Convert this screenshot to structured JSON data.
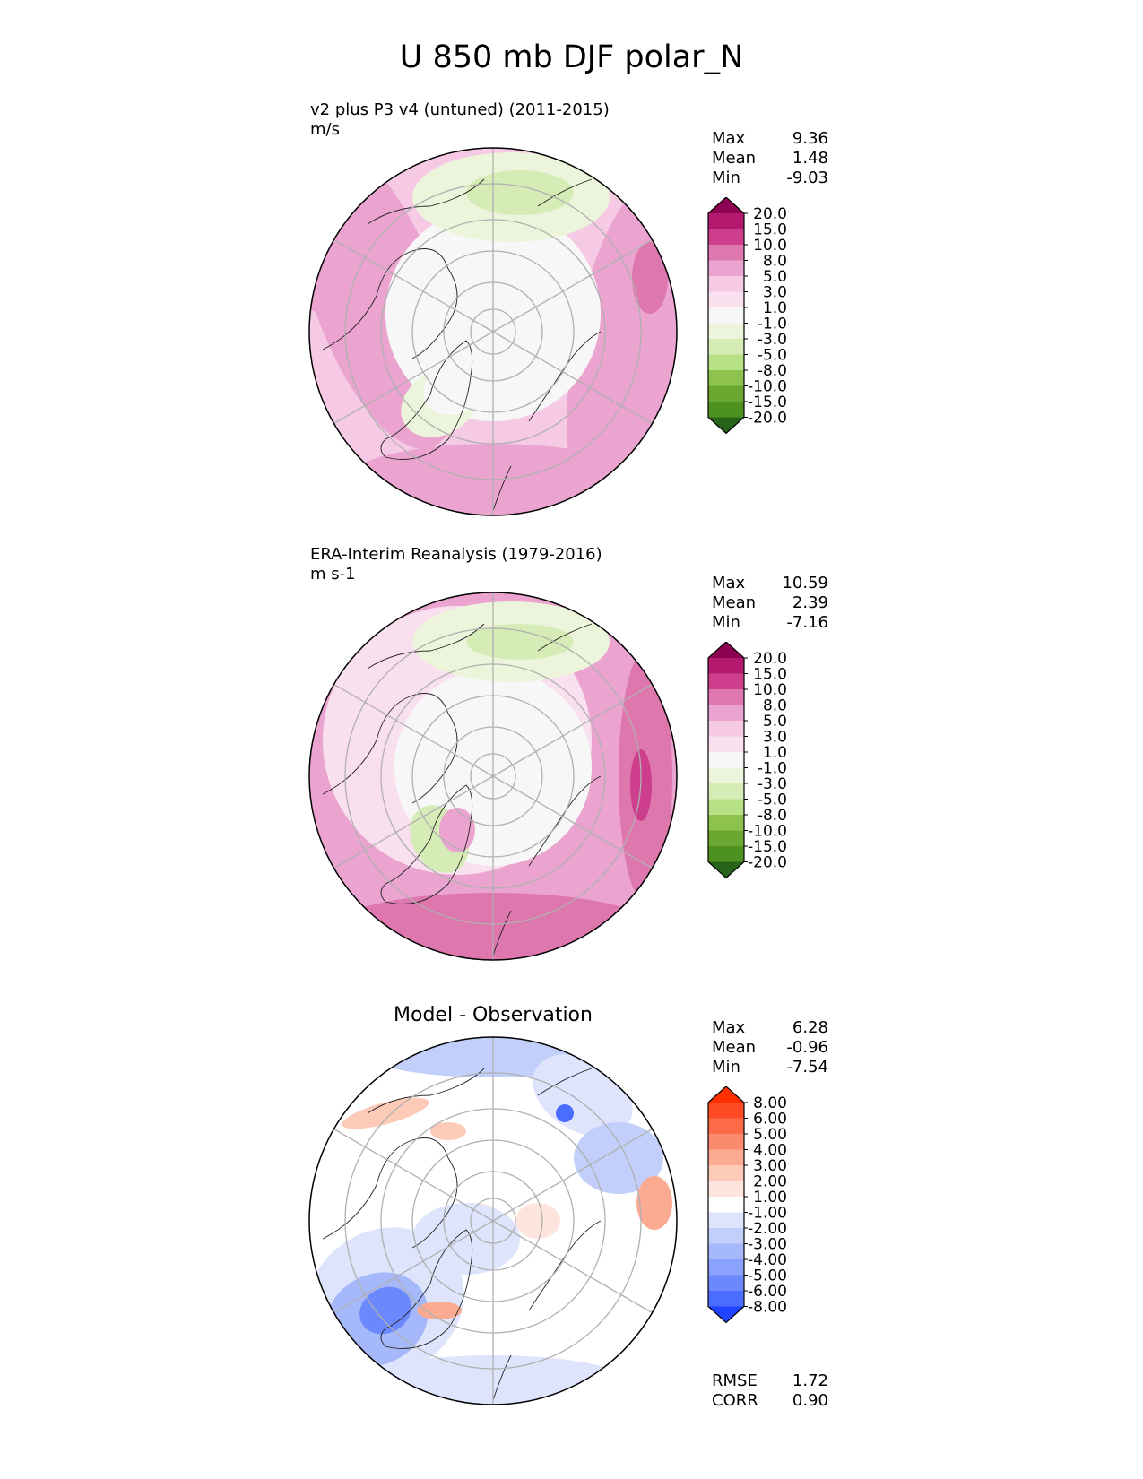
{
  "title": "U 850 mb DJF polar_N",
  "panels": [
    {
      "id": "test",
      "title": "v2 plus P3 v4 (untuned) (2011-2015)",
      "units": "m/s",
      "stats": [
        {
          "label": "Max",
          "value": "9.36"
        },
        {
          "label": "Mean",
          "value": "1.48"
        },
        {
          "label": "Min",
          "value": "-9.03"
        }
      ]
    },
    {
      "id": "ref",
      "title": "ERA-Interim Reanalysis (1979-2016)",
      "units": "m s-1",
      "stats": [
        {
          "label": "Max",
          "value": "10.59"
        },
        {
          "label": "Mean",
          "value": "2.39"
        },
        {
          "label": "Min",
          "value": "-7.16"
        }
      ]
    },
    {
      "id": "diff",
      "title": "Model - Observation",
      "stats": [
        {
          "label": "Max",
          "value": "6.28"
        },
        {
          "label": "Mean",
          "value": "-0.96"
        },
        {
          "label": "Min",
          "value": "-7.54"
        }
      ],
      "metrics": [
        {
          "label": "RMSE",
          "value": "1.72"
        },
        {
          "label": "CORR",
          "value": "0.90"
        }
      ]
    }
  ],
  "chart_data": [
    {
      "type": "heatmap",
      "projection": "north-polar-stereographic",
      "title": "v2 plus P3 v4 (untuned) (2011-2015)",
      "units": "m/s",
      "colorbar": {
        "ticks": [
          "20.0",
          "15.0",
          "10.0",
          "8.0",
          "5.0",
          "3.0",
          "1.0",
          "-1.0",
          "-3.0",
          "-5.0",
          "-8.0",
          "-10.0",
          "-15.0",
          "-20.0"
        ],
        "colors": [
          "#8e0152",
          "#b3196e",
          "#cd3f8d",
          "#de77ae",
          "#eba4cf",
          "#f6c9e4",
          "#f9e0ef",
          "#f7f7f7",
          "#ecf5dc",
          "#d6ecb6",
          "#b8e186",
          "#8dc24f",
          "#6aa832",
          "#4d9221",
          "#276419"
        ]
      },
      "stats": {
        "max": 9.36,
        "mean": 1.48,
        "min": -9.03
      }
    },
    {
      "type": "heatmap",
      "projection": "north-polar-stereographic",
      "title": "ERA-Interim Reanalysis (1979-2016)",
      "units": "m s-1",
      "colorbar": {
        "ticks": [
          "20.0",
          "15.0",
          "10.0",
          "8.0",
          "5.0",
          "3.0",
          "1.0",
          "-1.0",
          "-3.0",
          "-5.0",
          "-8.0",
          "-10.0",
          "-15.0",
          "-20.0"
        ],
        "colors": [
          "#8e0152",
          "#b3196e",
          "#cd3f8d",
          "#de77ae",
          "#eba4cf",
          "#f6c9e4",
          "#f9e0ef",
          "#f7f7f7",
          "#ecf5dc",
          "#d6ecb6",
          "#b8e186",
          "#8dc24f",
          "#6aa832",
          "#4d9221",
          "#276419"
        ]
      },
      "stats": {
        "max": 10.59,
        "mean": 2.39,
        "min": -7.16
      }
    },
    {
      "type": "heatmap",
      "projection": "north-polar-stereographic",
      "title": "Model - Observation",
      "colorbar": {
        "ticks": [
          "8.00",
          "6.00",
          "5.00",
          "4.00",
          "3.00",
          "2.00",
          "1.00",
          "-1.00",
          "-2.00",
          "-3.00",
          "-4.00",
          "-5.00",
          "-6.00",
          "-8.00"
        ],
        "colors": [
          "#ff2f00",
          "#ff4b25",
          "#fd6a48",
          "#fc8a6d",
          "#fcab93",
          "#fdcab8",
          "#fde5dd",
          "#ffffff",
          "#dde4fb",
          "#c2cffa",
          "#a5b8fa",
          "#8aa2fb",
          "#6b89fd",
          "#4a6cff",
          "#1f43ff"
        ]
      },
      "stats": {
        "max": 6.28,
        "mean": -0.96,
        "min": -7.54,
        "rmse": 1.72,
        "corr": 0.9
      }
    }
  ]
}
